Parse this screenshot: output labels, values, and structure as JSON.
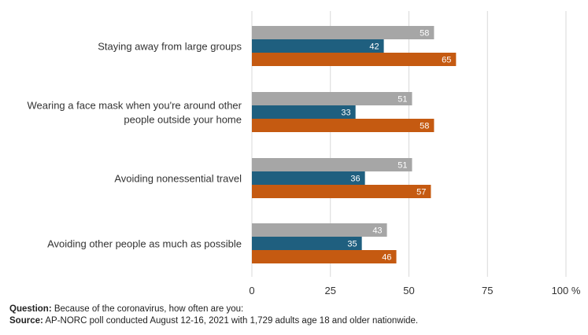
{
  "chart_data": {
    "type": "bar",
    "orientation": "horizontal",
    "categories": [
      [
        "Staying away from large groups"
      ],
      [
        "Wearing a face mask when you're around other",
        "people outside your home"
      ],
      [
        "Avoiding nonessential travel"
      ],
      [
        "Avoiding other people as much as possible"
      ]
    ],
    "series": [
      {
        "color": "#a6a6a6",
        "values": [
          58,
          51,
          51,
          43
        ]
      },
      {
        "color": "#1f5f7f",
        "values": [
          42,
          33,
          36,
          35
        ]
      },
      {
        "color": "#c55a11",
        "values": [
          65,
          58,
          57,
          46
        ]
      }
    ],
    "x_ticks": [
      "0",
      "25",
      "50",
      "75",
      "100 %"
    ],
    "xlim": [
      0,
      100
    ],
    "grid": true
  },
  "footer": {
    "question_label": "Question:",
    "question_text": " Because of the coronavirus, how often are you:",
    "source_label": "Source:",
    "source_text": "  AP-NORC poll conducted August 12-16, 2021 with 1,729 adults age 18 and older nationwide."
  }
}
